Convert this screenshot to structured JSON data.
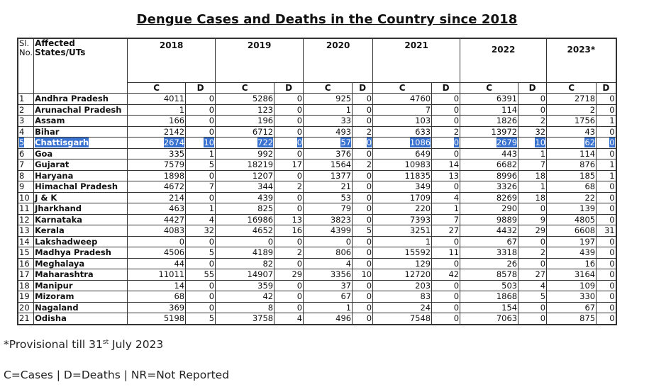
{
  "title": "Dengue Cases and Deaths in the Country since 2018",
  "table": {
    "header": {
      "sl": "Sl. No.",
      "sl_line1": "Sl.",
      "sl_line2": "No.",
      "state_line1": "Affected",
      "state_line2": "States/UTs",
      "cases_label": "C",
      "deaths_label": "D"
    },
    "years": [
      "2018",
      "2019",
      "2020",
      "2021",
      "2022",
      "2023*"
    ],
    "selected_row": 5,
    "highlight_color": "#3a72d0",
    "rows": [
      {
        "sl": "1",
        "state": "Andhra Pradesh",
        "values": [
          4011,
          0,
          5286,
          0,
          925,
          0,
          4760,
          0,
          6391,
          0,
          2718,
          0
        ]
      },
      {
        "sl": "2",
        "state": "Arunachal Pradesh",
        "values": [
          1,
          0,
          123,
          0,
          1,
          0,
          7,
          0,
          114,
          0,
          2,
          0
        ]
      },
      {
        "sl": "3",
        "state": "Assam",
        "values": [
          166,
          0,
          196,
          0,
          33,
          0,
          103,
          0,
          1826,
          2,
          1756,
          1
        ]
      },
      {
        "sl": "4",
        "state": "Bihar",
        "values": [
          2142,
          0,
          6712,
          0,
          493,
          2,
          633,
          2,
          13972,
          32,
          43,
          0
        ]
      },
      {
        "sl": "5",
        "state": "Chattisgarh",
        "values": [
          2674,
          10,
          722,
          0,
          57,
          0,
          1086,
          0,
          2679,
          10,
          62,
          0
        ]
      },
      {
        "sl": "6",
        "state": "Goa",
        "values": [
          335,
          1,
          992,
          0,
          376,
          0,
          649,
          0,
          443,
          1,
          114,
          0
        ]
      },
      {
        "sl": "7",
        "state": "Gujarat",
        "values": [
          7579,
          5,
          18219,
          17,
          1564,
          2,
          10983,
          14,
          6682,
          7,
          876,
          1
        ]
      },
      {
        "sl": "8",
        "state": "Haryana",
        "values": [
          1898,
          0,
          1207,
          0,
          1377,
          0,
          11835,
          13,
          8996,
          18,
          185,
          1
        ]
      },
      {
        "sl": "9",
        "state": "Himachal Pradesh",
        "values": [
          4672,
          7,
          344,
          2,
          21,
          0,
          349,
          0,
          3326,
          1,
          68,
          0
        ]
      },
      {
        "sl": "10",
        "state": "J & K",
        "values": [
          214,
          0,
          439,
          0,
          53,
          0,
          1709,
          4,
          8269,
          18,
          22,
          0
        ]
      },
      {
        "sl": "11",
        "state": "Jharkhand",
        "values": [
          463,
          1,
          825,
          0,
          79,
          0,
          220,
          1,
          290,
          0,
          139,
          0
        ]
      },
      {
        "sl": "12",
        "state": "Karnataka",
        "values": [
          4427,
          4,
          16986,
          13,
          3823,
          0,
          7393,
          7,
          9889,
          9,
          4805,
          0
        ]
      },
      {
        "sl": "13",
        "state": "Kerala",
        "values": [
          4083,
          32,
          4652,
          16,
          4399,
          5,
          3251,
          27,
          4432,
          29,
          6608,
          31
        ]
      },
      {
        "sl": "14",
        "state": "Lakshadweep",
        "values": [
          0,
          0,
          0,
          0,
          0,
          0,
          1,
          0,
          67,
          0,
          197,
          0
        ]
      },
      {
        "sl": "15",
        "state": "Madhya Pradesh",
        "values": [
          4506,
          5,
          4189,
          2,
          806,
          0,
          15592,
          11,
          3318,
          2,
          439,
          0
        ]
      },
      {
        "sl": "16",
        "state": "Meghalaya",
        "values": [
          44,
          0,
          82,
          0,
          4,
          0,
          129,
          0,
          26,
          0,
          16,
          0
        ]
      },
      {
        "sl": "17",
        "state": "Maharashtra",
        "values": [
          11011,
          55,
          14907,
          29,
          3356,
          10,
          12720,
          42,
          8578,
          27,
          3164,
          0
        ]
      },
      {
        "sl": "18",
        "state": "Manipur",
        "values": [
          14,
          0,
          359,
          0,
          37,
          0,
          203,
          0,
          503,
          4,
          109,
          0
        ]
      },
      {
        "sl": "19",
        "state": "Mizoram",
        "values": [
          68,
          0,
          42,
          0,
          67,
          0,
          83,
          0,
          1868,
          5,
          330,
          0
        ]
      },
      {
        "sl": "20",
        "state": "Nagaland",
        "values": [
          369,
          0,
          8,
          0,
          1,
          0,
          24,
          0,
          154,
          0,
          67,
          0
        ]
      },
      {
        "sl": "21",
        "state": "Odisha",
        "values": [
          5198,
          5,
          3758,
          4,
          496,
          0,
          7548,
          0,
          7063,
          0,
          875,
          0
        ]
      }
    ]
  },
  "footnotes": {
    "provisional_prefix": "*Provisional till 31",
    "provisional_sup": "st",
    "provisional_suffix": " July 2023",
    "legend": "C=Cases | D=Deaths | NR=Not Reported"
  }
}
